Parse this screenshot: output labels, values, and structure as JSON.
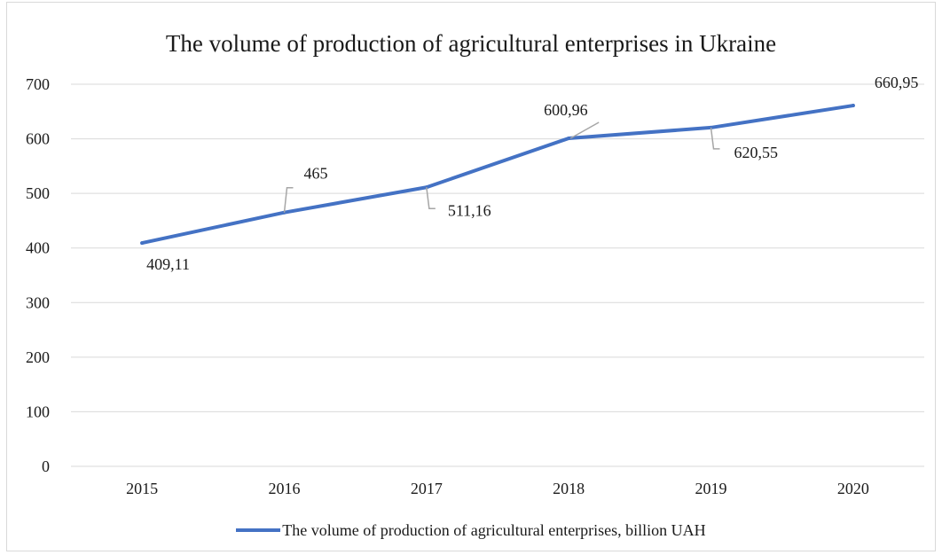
{
  "chart_data": {
    "type": "line",
    "title": "The volume of production of agricultural enterprises in Ukraine",
    "categories": [
      "2015",
      "2016",
      "2017",
      "2018",
      "2019",
      "2020"
    ],
    "series": [
      {
        "name": "The volume of production of agricultural enterprises, billion UAH",
        "values": [
          409.11,
          465,
          511.16,
          600.96,
          620.55,
          660.95
        ],
        "data_labels": [
          "409,11",
          "465",
          "511,16",
          "600,96",
          "620,55",
          "660,95"
        ],
        "color": "#4472c4"
      }
    ],
    "ylim": [
      0,
      700
    ],
    "yticks": [
      "0",
      "100",
      "200",
      "300",
      "400",
      "500",
      "600",
      "700"
    ],
    "grid": true,
    "legend_position": "bottom"
  }
}
